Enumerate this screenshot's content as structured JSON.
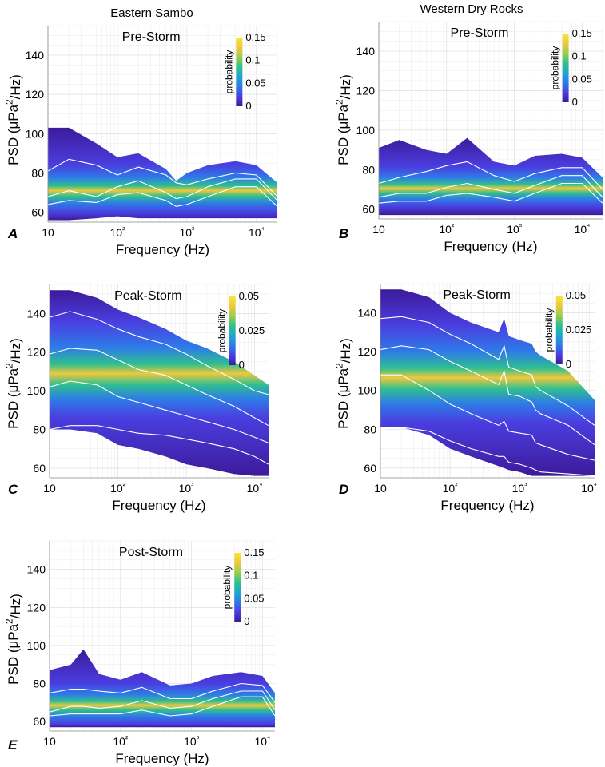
{
  "figure": {
    "column_titles": [
      "Eastern Sambo",
      "Western Dry Rocks"
    ]
  },
  "colormap": [
    "#3d1a9a",
    "#4a3ee0",
    "#2e7be8",
    "#1ea8cc",
    "#2fc08f",
    "#9fcc4a",
    "#f0c83c",
    "#f7e630"
  ],
  "chart_data": [
    {
      "type": "heatmap",
      "panel": "A",
      "site": "Eastern Sambo",
      "title": "Pre-Storm",
      "xlabel": "Frequency (Hz)",
      "ylabel": "PSD (μPa²/Hz)",
      "x_scale": "log",
      "xlim": [
        10,
        20000
      ],
      "ylim": [
        55,
        155
      ],
      "xticks": [
        10,
        100,
        1000,
        10000
      ],
      "xtick_labels": [
        "10",
        "10²",
        "10³",
        "10⁴"
      ],
      "yticks": [
        60,
        80,
        100,
        120,
        140
      ],
      "colorbar": {
        "label": "probability",
        "range": [
          0,
          0.15
        ],
        "ticks": [
          0,
          0.05,
          0.1,
          0.15
        ],
        "tick_labels": [
          "0",
          "0.05",
          "0.1",
          "0.15"
        ]
      },
      "frequency_hz": [
        10,
        20,
        50,
        100,
        200,
        500,
        700,
        1000,
        2000,
        5000,
        10000,
        20000
      ],
      "upper_envelope_db": [
        103,
        103,
        95,
        88,
        90,
        82,
        76,
        80,
        84,
        86,
        84,
        75
      ],
      "lower_envelope_db": [
        56,
        56,
        57,
        58,
        57,
        57,
        57,
        57,
        57,
        57,
        57,
        57
      ],
      "percentile_lines_db": [
        {
          "name": "high",
          "values": [
            81,
            87,
            84,
            79,
            83,
            79,
            75,
            74,
            77,
            80,
            79,
            68
          ]
        },
        {
          "name": "median",
          "values": [
            68,
            71,
            68,
            73,
            76,
            70,
            67,
            68,
            73,
            77,
            77,
            66
          ]
        },
        {
          "name": "low",
          "values": [
            64,
            66,
            65,
            69,
            70,
            66,
            63,
            64,
            68,
            73,
            73,
            63
          ]
        }
      ]
    },
    {
      "type": "heatmap",
      "panel": "B",
      "site": "Western Dry Rocks",
      "title": "Pre-Storm",
      "xlabel": "Frequency (Hz)",
      "ylabel": "PSD (μPa²/Hz)",
      "x_scale": "log",
      "xlim": [
        10,
        20000
      ],
      "ylim": [
        55,
        155
      ],
      "xticks": [
        10,
        100,
        1000,
        10000
      ],
      "xtick_labels": [
        "10",
        "10²",
        "10³",
        "10⁴"
      ],
      "yticks": [
        60,
        80,
        100,
        120,
        140
      ],
      "colorbar": {
        "label": "probability",
        "range": [
          0,
          0.15
        ],
        "ticks": [
          0,
          0.05,
          0.1,
          0.15
        ],
        "tick_labels": [
          "0",
          "0.05",
          "0.1",
          "0.15"
        ]
      },
      "frequency_hz": [
        10,
        20,
        50,
        100,
        200,
        500,
        1000,
        2000,
        5000,
        10000,
        20000
      ],
      "upper_envelope_db": [
        91,
        95,
        90,
        88,
        96,
        84,
        82,
        87,
        88,
        86,
        76
      ],
      "lower_envelope_db": [
        57,
        57,
        57,
        57,
        57,
        57,
        57,
        57,
        57,
        57,
        57
      ],
      "percentile_lines_db": [
        {
          "name": "high",
          "values": [
            73,
            76,
            79,
            82,
            84,
            77,
            74,
            78,
            81,
            81,
            70
          ]
        },
        {
          "name": "median",
          "values": [
            66,
            68,
            68,
            71,
            73,
            70,
            68,
            72,
            77,
            77,
            66
          ]
        },
        {
          "name": "low",
          "values": [
            63,
            64,
            64,
            67,
            68,
            66,
            64,
            68,
            73,
            73,
            63
          ]
        }
      ]
    },
    {
      "type": "heatmap",
      "panel": "C",
      "site": "Eastern Sambo",
      "title": "Peak-Storm",
      "xlabel": "Frequency (Hz)",
      "ylabel": "PSD (μPa²/Hz)",
      "x_scale": "log",
      "xlim": [
        10,
        16000
      ],
      "ylim": [
        55,
        155
      ],
      "xticks": [
        10,
        100,
        1000,
        10000
      ],
      "xtick_labels": [
        "10",
        "10²",
        "10³",
        "10⁴"
      ],
      "yticks": [
        60,
        80,
        100,
        120,
        140
      ],
      "colorbar": {
        "label": "probability",
        "range": [
          0,
          0.05
        ],
        "ticks": [
          0,
          0.025,
          0.05
        ],
        "tick_labels": [
          "0",
          "0.025",
          "0.05"
        ]
      },
      "frequency_hz": [
        10,
        20,
        50,
        100,
        200,
        500,
        1000,
        2000,
        5000,
        10000,
        16000
      ],
      "upper_envelope_db": [
        152,
        152,
        148,
        142,
        138,
        132,
        126,
        122,
        115,
        108,
        103
      ],
      "lower_envelope_db": [
        80,
        80,
        78,
        72,
        70,
        66,
        62,
        60,
        57,
        56,
        56
      ],
      "percentile_lines_db": [
        {
          "name": "high",
          "values": [
            138,
            141,
            137,
            132,
            128,
            124,
            119,
            113,
            106,
            100,
            98
          ]
        },
        {
          "name": "upper-mid",
          "values": [
            119,
            122,
            121,
            116,
            111,
            108,
            103,
            98,
            92,
            86,
            82
          ]
        },
        {
          "name": "lower-mid",
          "values": [
            102,
            105,
            103,
            97,
            94,
            90,
            87,
            84,
            80,
            76,
            73
          ]
        },
        {
          "name": "low",
          "values": [
            80,
            82,
            82,
            80,
            78,
            77,
            75,
            73,
            70,
            66,
            62
          ]
        }
      ]
    },
    {
      "type": "heatmap",
      "panel": "D",
      "site": "Western Dry Rocks",
      "title": "Peak-Storm",
      "xlabel": "Frequency (Hz)",
      "ylabel": "PSD (μPa²/Hz)",
      "x_scale": "log",
      "xlim": [
        10,
        12000
      ],
      "ylim": [
        55,
        155
      ],
      "xticks": [
        10,
        100,
        1000,
        10000
      ],
      "xtick_labels": [
        "10",
        "10²",
        "10³",
        "10⁴"
      ],
      "yticks": [
        60,
        80,
        100,
        120,
        140
      ],
      "colorbar": {
        "label": "probability",
        "range": [
          0,
          0.05
        ],
        "ticks": [
          0,
          0.025,
          0.05
        ],
        "tick_labels": [
          "0",
          "0.025",
          "0.05"
        ]
      },
      "frequency_hz": [
        10,
        20,
        50,
        100,
        200,
        500,
        600,
        700,
        1000,
        1500,
        1700,
        2000,
        5000,
        12000
      ],
      "upper_envelope_db": [
        152,
        152,
        148,
        140,
        135,
        130,
        137,
        128,
        126,
        124,
        120,
        118,
        110,
        95
      ],
      "lower_envelope_db": [
        81,
        81,
        77,
        70,
        66,
        61,
        60,
        59,
        58,
        56,
        56,
        56,
        56,
        56
      ],
      "percentile_lines_db": [
        {
          "name": "high",
          "values": [
            137,
            138,
            135,
            129,
            124,
            116,
            123,
            112,
            110,
            108,
            102,
            100,
            92,
            82
          ]
        },
        {
          "name": "upper-mid",
          "values": [
            121,
            123,
            121,
            115,
            110,
            103,
            110,
            98,
            97,
            94,
            90,
            88,
            82,
            72
          ]
        },
        {
          "name": "lower-mid",
          "values": [
            108,
            108,
            100,
            93,
            88,
            82,
            84,
            79,
            78,
            77,
            73,
            72,
            67,
            64
          ]
        },
        {
          "name": "low",
          "values": [
            80,
            81,
            79,
            74,
            70,
            66,
            66,
            63,
            62,
            60,
            59,
            58,
            57,
            56
          ]
        }
      ]
    },
    {
      "type": "heatmap",
      "panel": "E",
      "site": "Eastern Sambo",
      "title": "Post-Storm",
      "xlabel": "Frequency (Hz)",
      "ylabel": "PSD (μPa²/Hz)",
      "x_scale": "log",
      "xlim": [
        10,
        15000
      ],
      "ylim": [
        55,
        155
      ],
      "xticks": [
        10,
        100,
        1000,
        10000
      ],
      "xtick_labels": [
        "10",
        "10²",
        "10³",
        "10⁴"
      ],
      "yticks": [
        60,
        80,
        100,
        120,
        140
      ],
      "colorbar": {
        "label": "probability",
        "range": [
          0,
          0.15
        ],
        "ticks": [
          0,
          0.05,
          0.1,
          0.15
        ],
        "tick_labels": [
          "0",
          "0.05",
          "0.1",
          "0.15"
        ]
      },
      "frequency_hz": [
        10,
        20,
        30,
        50,
        100,
        200,
        500,
        1000,
        2000,
        5000,
        10000,
        15000
      ],
      "upper_envelope_db": [
        87,
        90,
        98,
        85,
        82,
        86,
        79,
        80,
        84,
        86,
        84,
        75
      ],
      "lower_envelope_db": [
        57,
        57,
        57,
        57,
        57,
        57,
        57,
        57,
        57,
        57,
        57,
        57
      ],
      "percentile_lines_db": [
        {
          "name": "high",
          "values": [
            75,
            77,
            77,
            76,
            75,
            78,
            72,
            72,
            76,
            80,
            79,
            70
          ]
        },
        {
          "name": "median",
          "values": [
            65,
            68,
            68,
            67,
            68,
            71,
            67,
            68,
            72,
            76,
            76,
            66
          ]
        },
        {
          "name": "low",
          "values": [
            63,
            64,
            64,
            64,
            64,
            66,
            63,
            64,
            68,
            73,
            73,
            63
          ]
        }
      ]
    }
  ]
}
